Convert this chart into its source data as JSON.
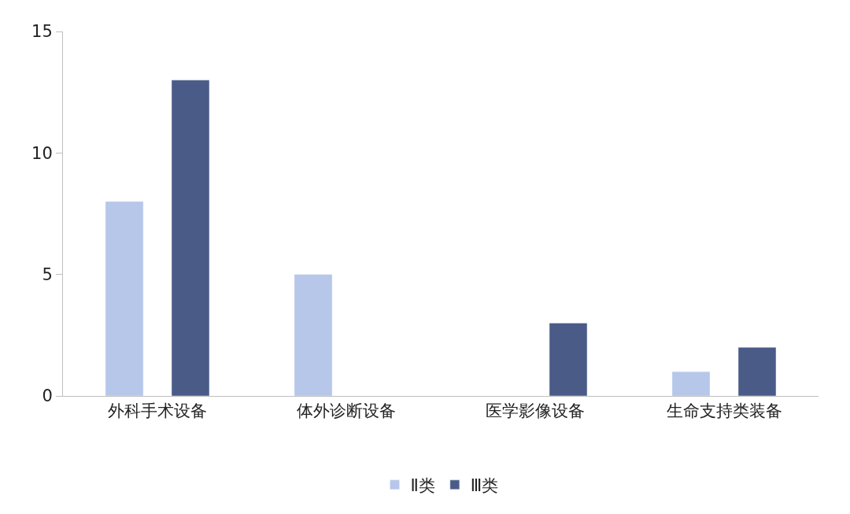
{
  "chart_data": {
    "type": "bar",
    "categories": [
      "外科手术设备",
      "体外诊断设备",
      "医学影像设备",
      "生命支持类装备"
    ],
    "series": [
      {
        "name": "Ⅱ类",
        "color": "#b7c7ea",
        "values": [
          8,
          5,
          null,
          1
        ]
      },
      {
        "name": "Ⅲ类",
        "color": "#4a5b88",
        "values": [
          13,
          null,
          3,
          2
        ]
      }
    ],
    "ylim": [
      0,
      15
    ],
    "yticks": [
      0,
      5,
      10,
      15
    ],
    "legend": "bottom"
  }
}
